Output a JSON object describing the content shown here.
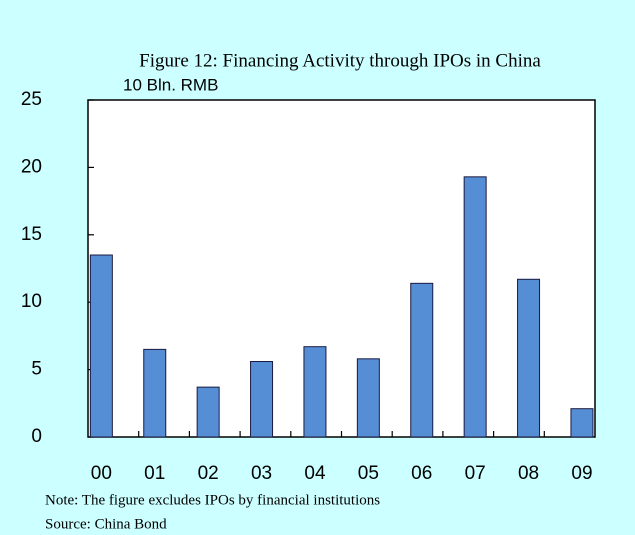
{
  "chart_data": {
    "type": "bar",
    "title": "Figure 12: Financing Activity through IPOs in China",
    "y_axis_label": "10 Bln.  RMB",
    "categories": [
      "00",
      "01",
      "02",
      "03",
      "04",
      "05",
      "06",
      "07",
      "08",
      "09"
    ],
    "values": [
      13.5,
      6.5,
      3.7,
      5.6,
      6.7,
      5.8,
      11.4,
      19.3,
      11.7,
      2.1
    ],
    "color": "#558ed5",
    "ylim": [
      0,
      25
    ],
    "yticks": [
      0,
      5,
      10,
      15,
      20,
      25
    ],
    "grid": false,
    "notes": [
      "Note: The figure excludes IPOs by financial institutions",
      "Source: China Bond"
    ]
  }
}
